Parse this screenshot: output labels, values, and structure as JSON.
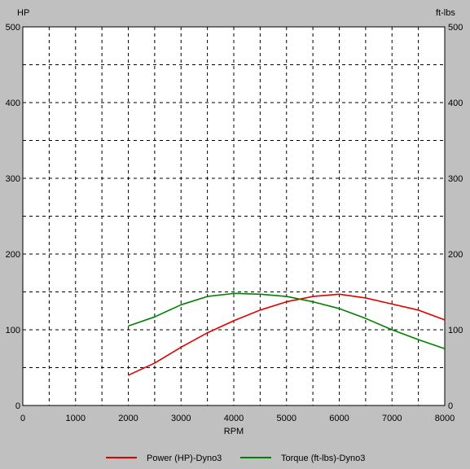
{
  "chart_data": {
    "type": "line",
    "title": "",
    "xlabel": "RPM",
    "ylabel_left": "HP",
    "ylabel_right": "ft-lbs",
    "xlim": [
      0,
      8000
    ],
    "ylim": [
      0,
      500
    ],
    "x_ticks": [
      0,
      1000,
      2000,
      3000,
      4000,
      5000,
      6000,
      7000,
      8000
    ],
    "y_ticks": [
      0,
      100,
      200,
      300,
      400,
      500
    ],
    "grid": true,
    "grid_style": "dashed",
    "legend_position": "bottom",
    "x": [
      2000,
      2500,
      3000,
      3500,
      4000,
      4500,
      5000,
      5500,
      6000,
      6500,
      7000,
      7500,
      8000
    ],
    "series": [
      {
        "name": "Power (HP)-Dyno3",
        "color": "#e00000",
        "values": [
          40,
          56,
          77,
          96,
          112,
          126,
          137,
          144,
          147,
          142,
          134,
          126,
          113
        ]
      },
      {
        "name": "Torque (ft-lbs)-Dyno3",
        "color": "#008000",
        "values": [
          105,
          117,
          133,
          144,
          148,
          147,
          144,
          137,
          128,
          115,
          100,
          87,
          75
        ]
      }
    ]
  }
}
